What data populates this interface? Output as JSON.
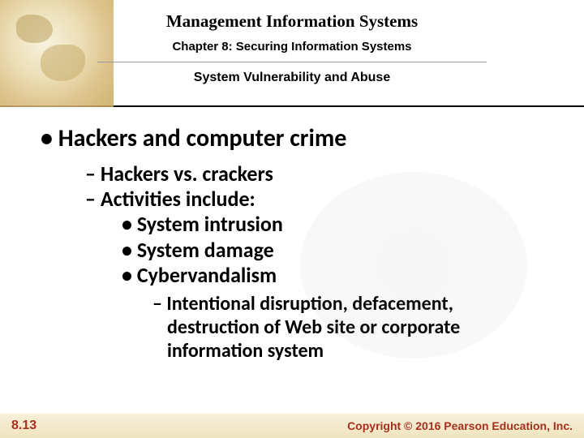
{
  "header": {
    "book_title": "Management Information Systems",
    "chapter_title": "Chapter 8: Securing Information Systems",
    "section_title": "System Vulnerability and Abuse"
  },
  "content": {
    "l1": "• Hackers and computer crime",
    "l2a": "– Hackers vs. crackers",
    "l2b": "– Activities include:",
    "l3a": "• System intrusion",
    "l3b": "• System damage",
    "l3c": "• Cybervandalism",
    "l4": "– Intentional disruption, defacement, destruction of Web site or corporate information system"
  },
  "footer": {
    "slide_number": "8.13",
    "copyright": "Copyright © 2016 Pearson Education, Inc."
  },
  "colors": {
    "accent_brown": "#a63020",
    "header_tan": "#e8d8a8",
    "footer_tan": "#f0e4c0",
    "text": "#000000"
  },
  "typography": {
    "title_family": "Times New Roman",
    "body_family": "Calibri",
    "label_family": "Arial",
    "title_size_pt": 16,
    "chapter_size_pt": 12,
    "section_size_pt": 12,
    "l1_size_pt": 22,
    "l2_size_pt": 20,
    "l3_size_pt": 20,
    "l4_size_pt": 18
  }
}
